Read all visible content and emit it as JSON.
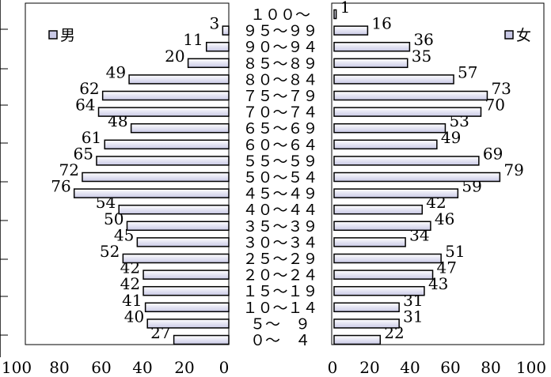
{
  "chart_data": {
    "type": "bar",
    "orientation": "horizontal",
    "subtype": "population-pyramid",
    "categories": [
      "０～　４",
      "５～　９",
      "１０～１４",
      "１５～１９",
      "２０～２４",
      "２５～２９",
      "３０～３４",
      "３５～３９",
      "４０～４４",
      "４５～４９",
      "５０～５４",
      "５５～５９",
      "６０～６４",
      "６５～６９",
      "７０～７４",
      "７５～７９",
      "８０～８４",
      "８５～８９",
      "９０～９４",
      "９５～９９",
      "１００～"
    ],
    "series": [
      {
        "name": "男",
        "side": "left",
        "values": [
          27,
          40,
          41,
          42,
          42,
          52,
          45,
          50,
          54,
          76,
          72,
          65,
          61,
          48,
          64,
          62,
          49,
          20,
          11,
          3,
          0
        ]
      },
      {
        "name": "女",
        "side": "right",
        "values": [
          22,
          31,
          31,
          43,
          47,
          51,
          34,
          46,
          42,
          59,
          79,
          69,
          49,
          53,
          70,
          73,
          57,
          35,
          36,
          16,
          1
        ]
      }
    ],
    "xlim": [
      0,
      100
    ],
    "x_ticks": [
      "100",
      "80",
      "60",
      "40",
      "20",
      "0"
    ],
    "x_ticks_right": [
      "0",
      "20",
      "40",
      "60",
      "80",
      "100"
    ],
    "bar_fill_top": "#ffffff",
    "bar_fill_bottom": "#c9c9e6",
    "bar_stroke": "#000000",
    "grid": false,
    "legend": [
      "top-left",
      "top-right"
    ]
  }
}
